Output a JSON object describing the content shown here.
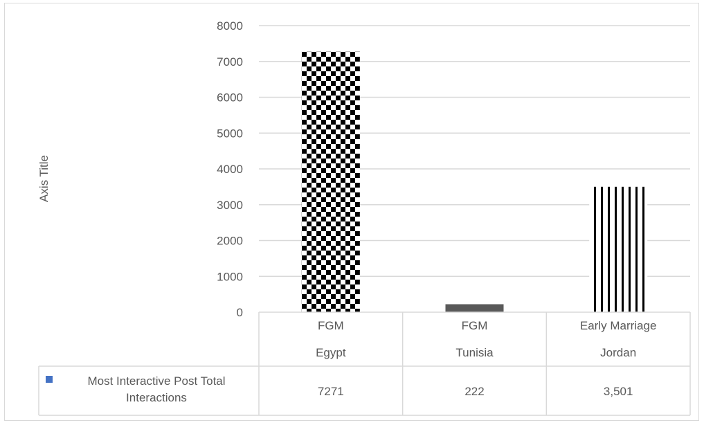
{
  "chart_data": {
    "type": "bar",
    "ylabel": "Axis Title",
    "ylim": [
      0,
      8000
    ],
    "yticks": [
      "0",
      "1000",
      "2000",
      "3000",
      "4000",
      "5000",
      "6000",
      "7000",
      "8000"
    ],
    "categories": [
      {
        "line1": "FGM",
        "line2": "Egypt"
      },
      {
        "line1": "FGM",
        "line2": "Tunisia"
      },
      {
        "line1": "Early Marriage",
        "line2": "Jordan"
      }
    ],
    "series": [
      {
        "name": "Most Interactive Post Total Interactions",
        "values": [
          7271,
          222,
          3501
        ],
        "labels": [
          "7271",
          "222",
          "3,501"
        ],
        "patterns": [
          "checker",
          "solid",
          "vertical-stripes"
        ]
      }
    ],
    "grid": true,
    "legend": "data-table",
    "legend_marker_color": "#4472c4",
    "gridline_color": "#d9d9d9"
  }
}
